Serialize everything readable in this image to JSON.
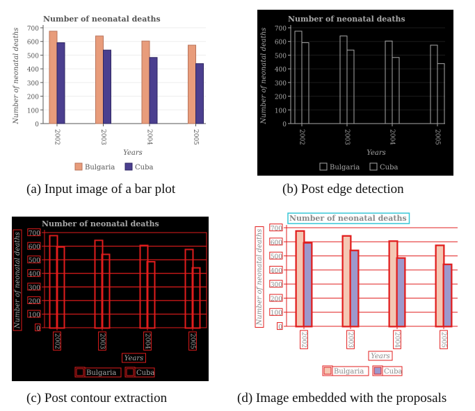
{
  "panels": {
    "a": {
      "caption": "(a) Input image of a bar plot"
    },
    "b": {
      "caption": "(b) Post edge detection"
    },
    "c": {
      "caption": "(c) Post contour extraction"
    },
    "d": {
      "caption": "(d) Image embedded with the proposals"
    }
  },
  "colors": {
    "bulgaria": "#e89c7b",
    "cuba": "#4b3f8f",
    "bulgaria_light": "#f4c7b3",
    "cuba_light": "#9d98cc",
    "proposal_red": "#e11d1d",
    "proposal_cyan": "#36c6d6",
    "edge_gray": "#a8a8a8"
  },
  "chart_data": {
    "type": "bar",
    "title": "Number of neonatal deaths",
    "xlabel": "Years",
    "ylabel": "Number of neonatal deaths",
    "categories": [
      "2002",
      "2003",
      "2004",
      "2005"
    ],
    "series": [
      {
        "name": "Bulgaria",
        "values": [
          675,
          640,
          603,
          573
        ]
      },
      {
        "name": "Cuba",
        "values": [
          591,
          537,
          483,
          438
        ]
      }
    ],
    "ylim": [
      0,
      700
    ],
    "yticks": [
      "0",
      "100",
      "200",
      "300",
      "400",
      "500",
      "600",
      "700"
    ],
    "grid": true,
    "legend": "bottom"
  }
}
